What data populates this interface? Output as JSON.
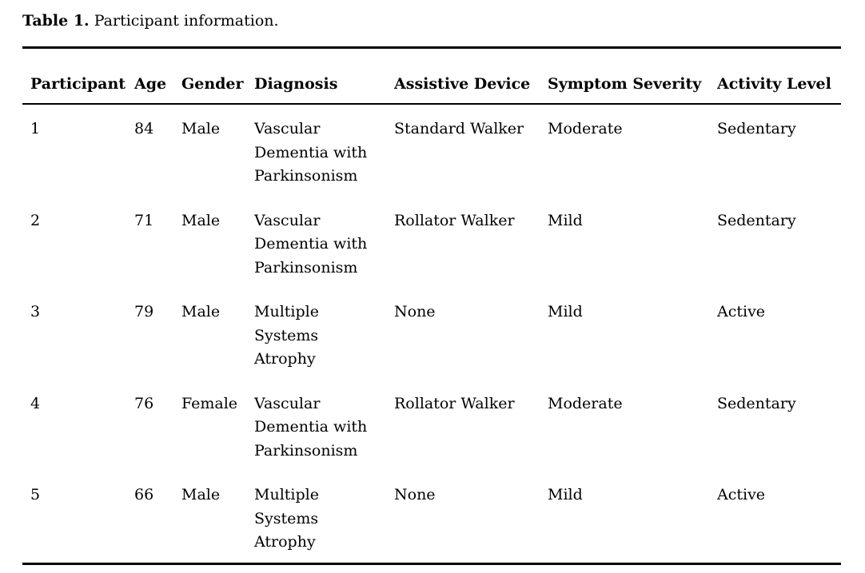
{
  "caption": {
    "label": "Table 1.",
    "text": "Participant information."
  },
  "table": {
    "columns": [
      {
        "key": "participant",
        "label": "Participant"
      },
      {
        "key": "age",
        "label": "Age"
      },
      {
        "key": "gender",
        "label": "Gender"
      },
      {
        "key": "diagnosis",
        "label": "Diagnosis"
      },
      {
        "key": "assistive_device",
        "label": "Assistive Device"
      },
      {
        "key": "symptom_severity",
        "label": "Symptom Severity"
      },
      {
        "key": "activity_level",
        "label": "Activity Level"
      }
    ],
    "rows": [
      {
        "participant": "1",
        "age": "84",
        "gender": "Male",
        "diagnosis": "Vascular\nDementia with\nParkinsonism",
        "assistive_device": "Standard Walker",
        "symptom_severity": "Moderate",
        "activity_level": "Sedentary"
      },
      {
        "participant": "2",
        "age": "71",
        "gender": "Male",
        "diagnosis": "Vascular\nDementia with\nParkinsonism",
        "assistive_device": "Rollator Walker",
        "symptom_severity": "Mild",
        "activity_level": "Sedentary"
      },
      {
        "participant": "3",
        "age": "79",
        "gender": "Male",
        "diagnosis": "Multiple\nSystems\nAtrophy",
        "assistive_device": "None",
        "symptom_severity": "Mild",
        "activity_level": "Active"
      },
      {
        "participant": "4",
        "age": "76",
        "gender": "Female",
        "diagnosis": "Vascular\nDementia with\nParkinsonism",
        "assistive_device": "Rollator Walker",
        "symptom_severity": "Moderate",
        "activity_level": "Sedentary"
      },
      {
        "participant": "5",
        "age": "66",
        "gender": "Male",
        "diagnosis": "Multiple\nSystems\nAtrophy",
        "assistive_device": "None",
        "symptom_severity": "Mild",
        "activity_level": "Active"
      }
    ]
  },
  "colors": {
    "text": "#000000",
    "rule": "#000000",
    "background": "#ffffff"
  }
}
